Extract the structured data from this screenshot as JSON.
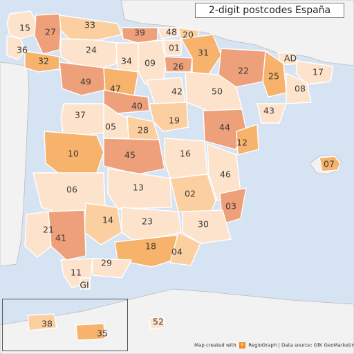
{
  "title": "2-digit postcodes España",
  "credit": {
    "prefix": "Map created with",
    "brand": "RegioGraph",
    "suffix": "| Data source: GfK GeoMarketing",
    "logo_icon": "regiograph-logo-icon"
  },
  "colors": {
    "sea": "#d6e3f2",
    "outside_land": "#f2f2f2",
    "lightest": "#fde3cc",
    "light": "#fbcf9f",
    "medium": "#f7b26b",
    "salmon": "#eea07a"
  },
  "regions": [
    {
      "code": "15",
      "shade": "c1"
    },
    {
      "code": "27",
      "shade": "c4"
    },
    {
      "code": "33",
      "shade": "c2"
    },
    {
      "code": "39",
      "shade": "c4"
    },
    {
      "code": "48",
      "shade": "c1"
    },
    {
      "code": "20",
      "shade": "c2"
    },
    {
      "code": "36",
      "shade": "c1"
    },
    {
      "code": "32",
      "shade": "c3"
    },
    {
      "code": "24",
      "shade": "c1"
    },
    {
      "code": "34",
      "shade": "c1"
    },
    {
      "code": "09",
      "shade": "c1"
    },
    {
      "code": "01",
      "shade": "c1"
    },
    {
      "code": "26",
      "shade": "c4"
    },
    {
      "code": "31",
      "shade": "c3"
    },
    {
      "code": "22",
      "shade": "c4"
    },
    {
      "code": "AD",
      "shade": "c1"
    },
    {
      "code": "25",
      "shade": "c3"
    },
    {
      "code": "17",
      "shade": "c1"
    },
    {
      "code": "08",
      "shade": "c1"
    },
    {
      "code": "49",
      "shade": "c4"
    },
    {
      "code": "47",
      "shade": "c3"
    },
    {
      "code": "42",
      "shade": "c1"
    },
    {
      "code": "50",
      "shade": "c1"
    },
    {
      "code": "37",
      "shade": "c1"
    },
    {
      "code": "40",
      "shade": "c4"
    },
    {
      "code": "05",
      "shade": "c1"
    },
    {
      "code": "19",
      "shade": "c2"
    },
    {
      "code": "43",
      "shade": "c1"
    },
    {
      "code": "28",
      "shade": "c2"
    },
    {
      "code": "44",
      "shade": "c4"
    },
    {
      "code": "10",
      "shade": "c3"
    },
    {
      "code": "45",
      "shade": "c4"
    },
    {
      "code": "16",
      "shade": "c1"
    },
    {
      "code": "12",
      "shade": "c3"
    },
    {
      "code": "07",
      "shade": "c3"
    },
    {
      "code": "46",
      "shade": "c1"
    },
    {
      "code": "06",
      "shade": "c1"
    },
    {
      "code": "13",
      "shade": "c1"
    },
    {
      "code": "02",
      "shade": "c2"
    },
    {
      "code": "03",
      "shade": "c4"
    },
    {
      "code": "21",
      "shade": "c1"
    },
    {
      "code": "14",
      "shade": "c2"
    },
    {
      "code": "23",
      "shade": "c1"
    },
    {
      "code": "30",
      "shade": "c1"
    },
    {
      "code": "41",
      "shade": "c4"
    },
    {
      "code": "18",
      "shade": "c3"
    },
    {
      "code": "04",
      "shade": "c2"
    },
    {
      "code": "29",
      "shade": "c1"
    },
    {
      "code": "11",
      "shade": "c1"
    },
    {
      "code": "GI",
      "shade": "c1"
    },
    {
      "code": "38",
      "shade": "c2"
    },
    {
      "code": "35",
      "shade": "c3"
    },
    {
      "code": "52",
      "shade": "c1"
    }
  ]
}
